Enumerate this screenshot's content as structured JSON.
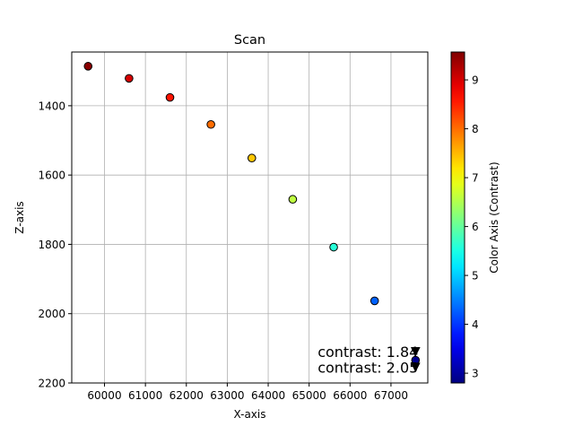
{
  "chart_data": {
    "type": "scatter",
    "title": "Scan",
    "xlabel": "X-axis",
    "ylabel": "Z-axis",
    "xlim": [
      59200,
      67900
    ],
    "ylim": [
      2200,
      1245
    ],
    "y_inverted": true,
    "grid": true,
    "xticks": [
      60000,
      61000,
      62000,
      63000,
      64000,
      65000,
      66000,
      67000
    ],
    "yticks": [
      1400,
      1600,
      1800,
      2000,
      2200
    ],
    "points": [
      {
        "x": 59600,
        "y": 1286,
        "c": 9.5
      },
      {
        "x": 60600,
        "y": 1321,
        "c": 9.0
      },
      {
        "x": 61600,
        "y": 1376,
        "c": 8.6
      },
      {
        "x": 62600,
        "y": 1454,
        "c": 8.0
      },
      {
        "x": 63600,
        "y": 1551,
        "c": 7.4
      },
      {
        "x": 64600,
        "y": 1670,
        "c": 6.6
      },
      {
        "x": 65600,
        "y": 1808,
        "c": 5.6
      },
      {
        "x": 66600,
        "y": 1963,
        "c": 4.3
      },
      {
        "x": 67600,
        "y": 2134,
        "c": 2.9
      }
    ],
    "markers": [
      {
        "x": 67600,
        "y": 2110
      },
      {
        "x": 67600,
        "y": 2155
      }
    ],
    "annotations": [
      {
        "text": "contrast: 1.84",
        "x": 67600,
        "y": 2110
      },
      {
        "text": "contrast: 2.05",
        "x": 67600,
        "y": 2155
      }
    ],
    "colorbar": {
      "label": "Color Axis (Contrast)",
      "range": [
        2.8,
        9.57
      ],
      "ticks": [
        3,
        4,
        5,
        6,
        7,
        8,
        9
      ],
      "colormap": "jet"
    }
  }
}
